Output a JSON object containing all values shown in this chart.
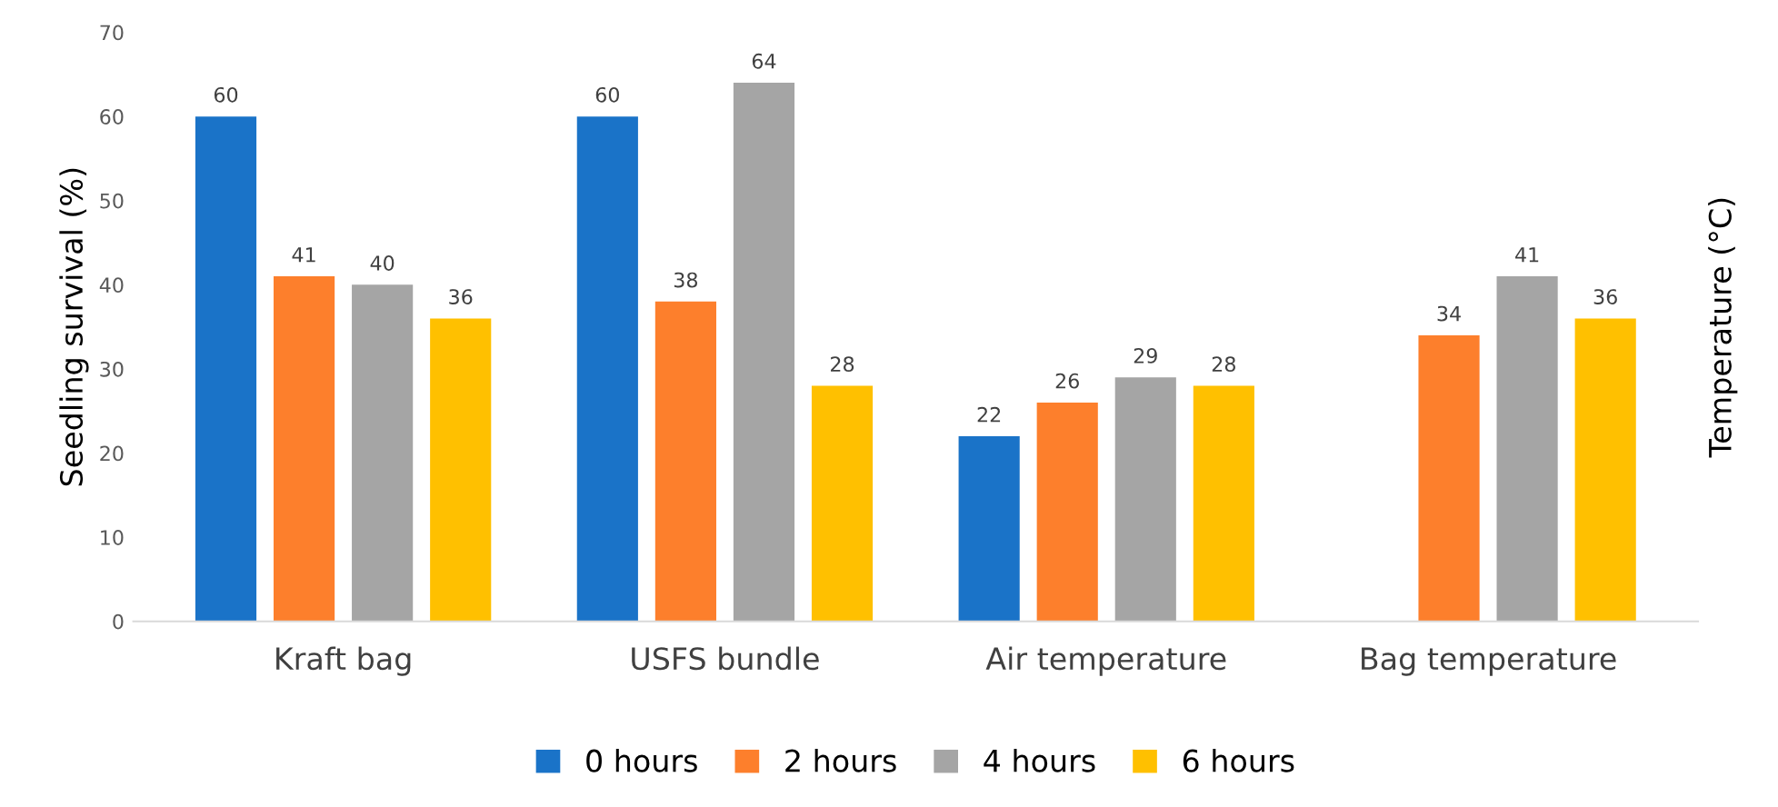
{
  "chart_data": {
    "type": "bar",
    "ylabel": "Seedling survival (%)",
    "y2label": "Temperature (°C)",
    "categories": [
      "Kraft bag",
      "USFS bundle",
      "Air temperature",
      "Bag temperature"
    ],
    "series": [
      {
        "name": "0 hours",
        "color": "#1a73c8",
        "values": [
          60,
          60,
          22,
          null
        ]
      },
      {
        "name": "2 hours",
        "color": "#fd7f2c",
        "values": [
          41,
          38,
          26,
          34
        ]
      },
      {
        "name": "4 hours",
        "color": "#a5a5a5",
        "values": [
          40,
          64,
          29,
          41
        ]
      },
      {
        "name": "6 hours",
        "color": "#ffc000",
        "values": [
          36,
          28,
          28,
          36
        ]
      }
    ],
    "ylim": [
      0,
      70
    ],
    "yticks": [
      0,
      10,
      20,
      30,
      40,
      50,
      60,
      70
    ],
    "data_labels": true,
    "grid": false,
    "legend": "bottom"
  }
}
